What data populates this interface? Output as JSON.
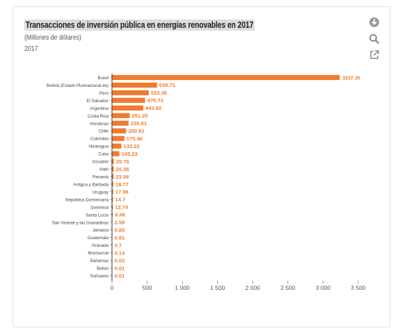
{
  "header": {
    "title": "Transacciones de inversión pública en energías renovables en 2017",
    "subtitle": "(Millones de dólares)",
    "year": "2017"
  },
  "toolbar": {
    "download_icon": "download-icon",
    "search_icon": "search-icon",
    "external_icon": "external-link-icon"
  },
  "colors": {
    "bar": "#ee7c2e",
    "label": "#ee7c2e",
    "axis": "#333333"
  },
  "chart_data": {
    "type": "bar",
    "orientation": "horizontal",
    "categories": [
      "Brasil",
      "Bolivia (Estado Plurinacional de)",
      "Perú",
      "El Salvador",
      "Argentina",
      "Costa Rica",
      "Honduras",
      "Chile",
      "Colombia",
      "Nicaragua",
      "Cuba",
      "Ecuador",
      "Haití",
      "Panamá",
      "Antigua y Barbuda",
      "Uruguay",
      "República Dominicana",
      "Dominica",
      "Santa Lucía",
      "San Vicente y las Granadinas",
      "Jamaica",
      "Guatemala",
      "Granada",
      "Montserrat",
      "Bahamas",
      "Belize",
      "Suriname"
    ],
    "values": [
      3237.35,
      639.71,
      523.36,
      470.73,
      443.92,
      251.28,
      235.81,
      200.91,
      175.46,
      133.22,
      105.23,
      25.76,
      25.36,
      23.36,
      18.77,
      17.56,
      14.7,
      12.74,
      9.48,
      2.58,
      0.85,
      0.81,
      0.7,
      0.14,
      0.02,
      0.01,
      0.01
    ],
    "value_labels": [
      "3237.35",
      "639.71",
      "523.36",
      "470.73",
      "443.92",
      "251.28",
      "235.81",
      "200.91",
      "175.46",
      "133.22",
      "105.23",
      "25.76",
      "25.36",
      "23.36",
      "18.77",
      "17.56",
      "14.7",
      "12.74",
      "9.48",
      "2.58",
      "0.85",
      "0.81",
      "0.7",
      "0.14",
      "0.02",
      "0.01",
      "0.01"
    ],
    "xlim": [
      0,
      3500
    ],
    "xticks": [
      0,
      500,
      1000,
      1500,
      2000,
      2500,
      3000,
      3500
    ],
    "xtick_labels": [
      "0",
      "500",
      "1 000",
      "1 500",
      "2 000",
      "2 500",
      "3 000",
      "3 500"
    ],
    "grid": false,
    "legend": "none"
  }
}
